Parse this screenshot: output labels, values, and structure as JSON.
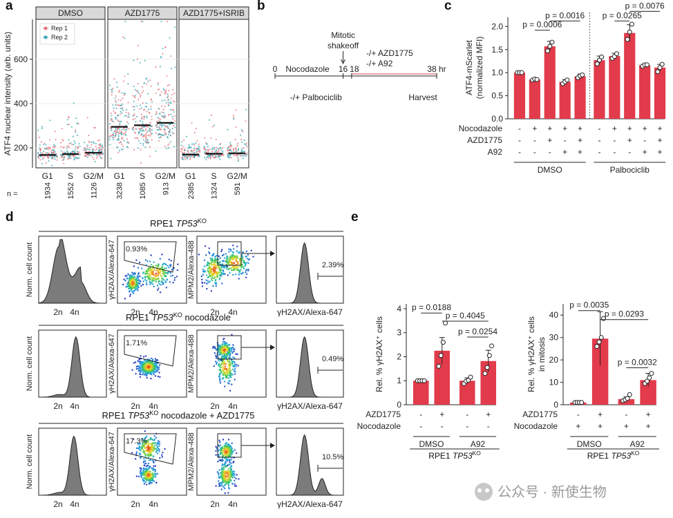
{
  "panel_labels": {
    "a": "a",
    "b": "b",
    "c": "c",
    "d": "d",
    "e": "e"
  },
  "watermark": "公众号 · 新使生物",
  "colors": {
    "bar": "#e23b4b",
    "rep1": "#e8747c",
    "rep2": "#3ca7b4",
    "dark": "#222222"
  },
  "chart_data": [
    {
      "id": "a",
      "type": "scatter",
      "ylabel": "ATF4 nuclear intensity (arb. units)",
      "ylim": [
        110,
        780
      ],
      "yticks": [
        200,
        400,
        600
      ],
      "facets": [
        "DMSO",
        "AZD1775",
        "AZD1775+ISRIB"
      ],
      "categories": [
        "G1",
        "S",
        "G2/M"
      ],
      "legend": [
        "Rep 1",
        "Rep 2"
      ],
      "n_label": "n =",
      "n_values": [
        [
          "1934",
          "1552",
          "1126"
        ],
        [
          "3238",
          "1085",
          "913"
        ],
        [
          "2385",
          "1324",
          "591"
        ]
      ],
      "medians": [
        [
          168,
          172,
          178
        ],
        [
          295,
          302,
          313
        ],
        [
          170,
          174,
          176
        ]
      ]
    },
    {
      "id": "b",
      "type": "diagram",
      "timepoints": [
        "0",
        "16",
        "18",
        "38 hr"
      ],
      "labels": {
        "nocodazole": "Nocodazole",
        "shakeoff1": "Mitotic",
        "shakeoff2": "shakeoff",
        "azd": "-/+ AZD1775",
        "a92": "-/+ A92",
        "palbo": "-/+ Palbociclib",
        "harvest": "Harvest"
      }
    },
    {
      "id": "c",
      "type": "bar",
      "ylabel1": "ATF4-mScarlet",
      "ylabel2": "(normalized MFI)",
      "ylim": [
        0,
        2.2
      ],
      "yticks": [
        "0.0",
        "0.5",
        "1.0",
        "1.5",
        "2.0"
      ],
      "values": [
        1.0,
        0.85,
        1.57,
        0.8,
        0.92,
        1.27,
        1.36,
        1.86,
        1.16,
        1.11
      ],
      "errors": [
        0.01,
        0.02,
        0.11,
        0.05,
        0.05,
        0.09,
        0.06,
        0.18,
        0.03,
        0.07
      ],
      "points": [
        [
          1.0,
          1.0,
          1.0
        ],
        [
          0.84,
          0.86,
          0.85
        ],
        [
          1.47,
          1.57,
          1.66
        ],
        [
          0.76,
          0.8,
          0.84
        ],
        [
          0.89,
          0.93,
          0.95
        ],
        [
          1.19,
          1.27,
          1.34
        ],
        [
          1.31,
          1.35,
          1.41
        ],
        [
          1.72,
          1.88,
          2.05
        ],
        [
          1.14,
          1.17,
          1.17
        ],
        [
          1.02,
          1.11,
          1.18
        ]
      ],
      "row_labels": [
        "Nocodazole",
        "AZD1775",
        "A92"
      ],
      "rows": [
        [
          "-",
          "+",
          "+",
          "+",
          "+",
          "-",
          "+",
          "+",
          "+",
          "+"
        ],
        [
          "-",
          "-",
          "+",
          "-",
          "+",
          "-",
          "-",
          "+",
          "-",
          "+"
        ],
        [
          "-",
          "-",
          "-",
          "+",
          "+",
          "-",
          "-",
          "-",
          "+",
          "+"
        ]
      ],
      "groups": [
        "DMSO",
        "Palbociclib"
      ],
      "pvalues": [
        {
          "text": "p = 0.0006",
          "from": 1,
          "to": 2,
          "y": 1.92
        },
        {
          "text": "p = 0.0016",
          "from": 2,
          "to": 4,
          "y": 2.12
        },
        {
          "text": "p = 0.0265",
          "from": 6,
          "to": 7,
          "y": 2.12
        },
        {
          "text": "p = 0.0076",
          "from": 7,
          "to": 9,
          "y": 2.33
        }
      ]
    },
    {
      "id": "d",
      "type": "flow_cytometry",
      "rows": [
        {
          "title_pre": "RPE1 ",
          "title_it": "TP53",
          "title_sup": "KO",
          "title_post": "",
          "gate_pct": "0.93%",
          "hist_pct": "2.39%"
        },
        {
          "title_pre": "RPE1 ",
          "title_it": "TP53",
          "title_sup": "KO",
          "title_post": " nocodazole",
          "gate_pct": "1.71%",
          "hist_pct": "0.49%"
        },
        {
          "title_pre": "RPE1 ",
          "title_it": "TP53",
          "title_sup": "KO",
          "title_post": " nocodazole + AZD1775",
          "gate_pct": "17.3%",
          "hist_pct": "10.5%"
        }
      ],
      "ylabel_count": "Norm. cell count",
      "ylabel_gh2ax": "γH2AX/Alexa-647",
      "ylabel_mpm2": "MPM2/Alexa-488",
      "xlabel_hist": "γH2AX/Alexa-647",
      "xticks": [
        "2n",
        "4n"
      ]
    },
    {
      "id": "e1",
      "type": "bar",
      "ylabel": "Rel. % γH2AX⁺ cells",
      "ylim": [
        0,
        4.2
      ],
      "yticks": [
        "0",
        "1",
        "2",
        "3",
        "4"
      ],
      "values": [
        1.0,
        2.25,
        1.0,
        1.82
      ],
      "errors": [
        0.0,
        0.55,
        0.12,
        0.45
      ],
      "points": [
        [
          1.0,
          1.0,
          1.0,
          1.0
        ],
        [
          1.6,
          2.05,
          2.6,
          3.4
        ],
        [
          0.88,
          0.98,
          1.02,
          1.15
        ],
        [
          1.3,
          1.55,
          2.05,
          2.45
        ]
      ],
      "row_labels": [
        "AZD1775",
        "Nocodazole"
      ],
      "rows": [
        [
          "-",
          "+",
          "-",
          "+"
        ],
        [
          "-",
          "-",
          "-",
          "-"
        ]
      ],
      "groups": [
        "DMSO",
        "A92"
      ],
      "footer_pre": "RPE1 ",
      "footer_it": "TP53",
      "footer_sup": "KO",
      "pvalues": [
        {
          "text": "p = 0.0188",
          "from": 0,
          "to": 1,
          "y": 3.82
        },
        {
          "text": "p = 0.4045",
          "from": 1,
          "to": 3,
          "y": 3.48
        },
        {
          "text": "p = 0.0254",
          "from": 2,
          "to": 3,
          "y": 2.82
        }
      ]
    },
    {
      "id": "e2",
      "type": "bar",
      "ylabel1": "Rel. % γH2AX⁺ cells",
      "ylabel2": "in mitosis",
      "ylim": [
        0,
        45
      ],
      "yticks": [
        "0",
        "10",
        "20",
        "30",
        "40"
      ],
      "values": [
        1.0,
        29.5,
        2.5,
        11.0
      ],
      "errors": [
        0.0,
        12.0,
        1.0,
        3.0
      ],
      "points": [
        [
          1.0,
          1.0,
          1.0,
          1.0
        ],
        [
          26.0,
          28.0,
          30.0,
          38.5
        ],
        [
          1.8,
          2.2,
          2.8,
          4.5
        ],
        [
          9.5,
          10.5,
          12.0,
          14.0
        ]
      ],
      "row_labels": [
        "AZD1775",
        "Nocodazole"
      ],
      "rows": [
        [
          "-",
          "+",
          "-",
          "+"
        ],
        [
          "+",
          "+",
          "+",
          "+"
        ]
      ],
      "groups": [
        "DMSO",
        "A92"
      ],
      "footer_pre": "RPE1 ",
      "footer_it": "TP53",
      "footer_sup": "KO",
      "pvalues": [
        {
          "text": "p = 0.0035",
          "from": 0,
          "to": 1,
          "y": 42.0
        },
        {
          "text": "p = 0.0293",
          "from": 1,
          "to": 3,
          "y": 38.0
        },
        {
          "text": "p = 0.0032",
          "from": 2,
          "to": 3,
          "y": 16.5
        }
      ]
    }
  ]
}
